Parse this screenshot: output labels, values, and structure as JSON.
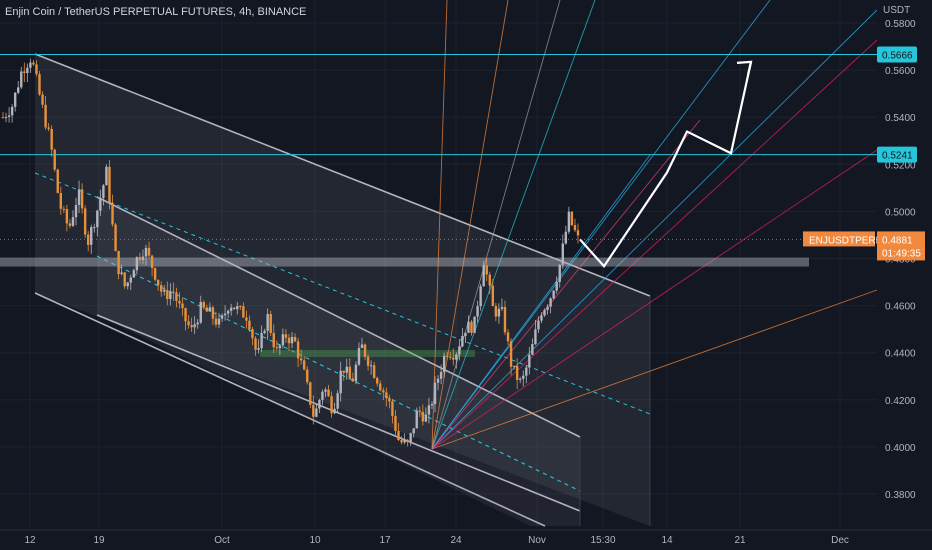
{
  "header": {
    "title": "Enjin Coin / TetherUS PERPETUAL FUTURES, 4h, BINANCE"
  },
  "colors": {
    "background": "#131722",
    "channel_line": "#b2b5be",
    "dashed_mid": "#26c6da",
    "cyan_level": "#26c6da",
    "candle_up": "#b2b5be",
    "candle_down": "#e8913b",
    "projection": "#ffffff",
    "symbol_label": "#f0883e"
  },
  "chart_data": {
    "type": "candlestick",
    "symbol_label": "ENJUSDTPERP",
    "yaxis": {
      "unit": "USDT",
      "ticks": [
        "0.5800",
        "0.5600",
        "0.5400",
        "0.5200",
        "0.5000",
        "0.4800",
        "0.4600",
        "0.4400",
        "0.4200",
        "0.4000",
        "0.3800"
      ],
      "tick_values": [
        0.58,
        0.56,
        0.54,
        0.52,
        0.5,
        0.48,
        0.46,
        0.44,
        0.42,
        0.4,
        0.38
      ],
      "ylim": [
        0.3735,
        0.5852
      ]
    },
    "xaxis": {
      "ticks": [
        "12",
        "19",
        "Oct",
        "10",
        "17",
        "24",
        "Nov",
        "15:30",
        "14",
        "21",
        "Dec"
      ]
    },
    "price_labels": [
      {
        "text": "0.5666",
        "value": 0.5666
      },
      {
        "text": "0.5241",
        "value": 0.5241
      }
    ],
    "last_price": {
      "text": "0.4881",
      "value": 0.4881,
      "countdown": "01:49:35"
    },
    "horizontal_levels": [
      0.5666,
      0.5241
    ],
    "support_zone": [
      0.4787,
      0.4765
    ],
    "price_path": [
      [
        0.54,
        0.5451,
        0.56,
        0.5656,
        0.547,
        0.53,
        0.503,
        0.4926
      ],
      [
        0.508,
        0.487,
        0.5006,
        0.517,
        0.479,
        0.4672,
        0.4786,
        0.4847
      ],
      [
        0.475,
        0.4639,
        0.4666,
        0.4563,
        0.4492,
        0.4588,
        0.4564,
        0.4516
      ],
      [
        0.4614,
        0.4578,
        0.4554,
        0.4375,
        0.4564,
        0.4398,
        0.4474,
        0.4441
      ],
      [
        0.43,
        0.4123,
        0.4261,
        0.4158,
        0.4346,
        0.4271,
        0.4431,
        0.4349
      ],
      [
        0.4265,
        0.4182,
        0.4025,
        0.4005,
        0.4157,
        0.412,
        0.4274,
        0.4408
      ],
      [
        0.4398,
        0.4506,
        0.4516,
        0.4797,
        0.458,
        0.4565,
        0.4332,
        0.4265
      ],
      [
        0.4398,
        0.4572,
        0.4628,
        0.4759,
        0.4977,
        0.4881
      ]
    ],
    "projection_path": [
      0.4881,
      0.4767,
      0.5165,
      0.5339,
      0.5247,
      0.5635
    ]
  }
}
